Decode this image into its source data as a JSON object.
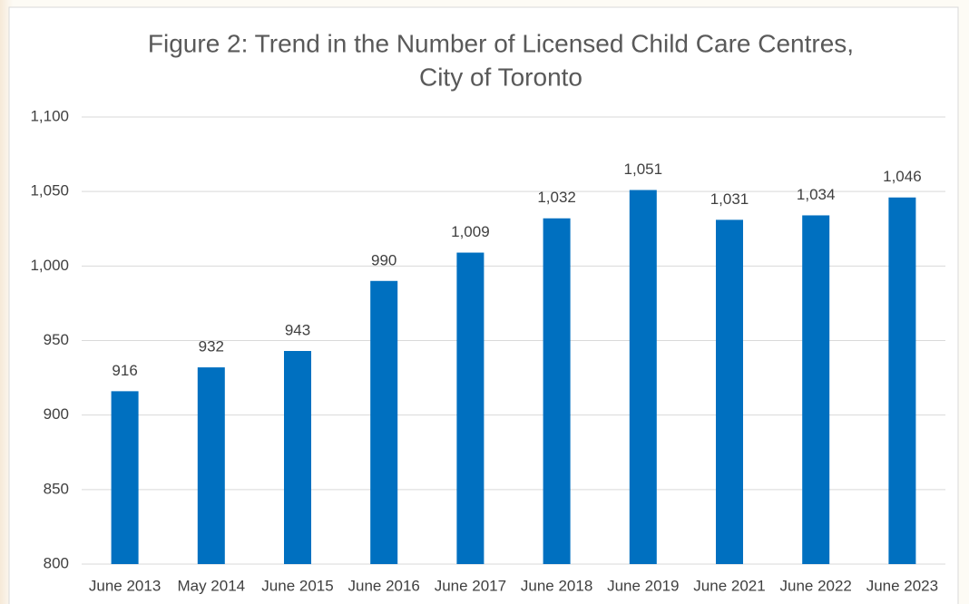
{
  "chart_data": {
    "type": "bar",
    "title": [
      "Figure 2: Trend in the Number of Licensed Child Care Centres,",
      "City of Toronto"
    ],
    "categories": [
      "June 2013",
      "May 2014",
      "June 2015",
      "June 2016",
      "June 2017",
      "June 2018",
      "June 2019",
      "June 2021",
      "June 2022",
      "June 2023"
    ],
    "values": [
      916,
      932,
      943,
      990,
      1009,
      1032,
      1051,
      1031,
      1034,
      1046
    ],
    "value_labels": [
      "916",
      "932",
      "943",
      "990",
      "1,009",
      "1,032",
      "1,051",
      "1,031",
      "1,034",
      "1,046"
    ],
    "color": "#0070c0",
    "ylim": [
      800,
      1100
    ],
    "yticks": [
      800,
      850,
      900,
      950,
      {
        "value": 1000,
        "label": "1,000"
      },
      {
        "value": 1050,
        "label": "1,050"
      },
      {
        "value": 1100,
        "label": "1,100"
      }
    ],
    "grid": true
  }
}
